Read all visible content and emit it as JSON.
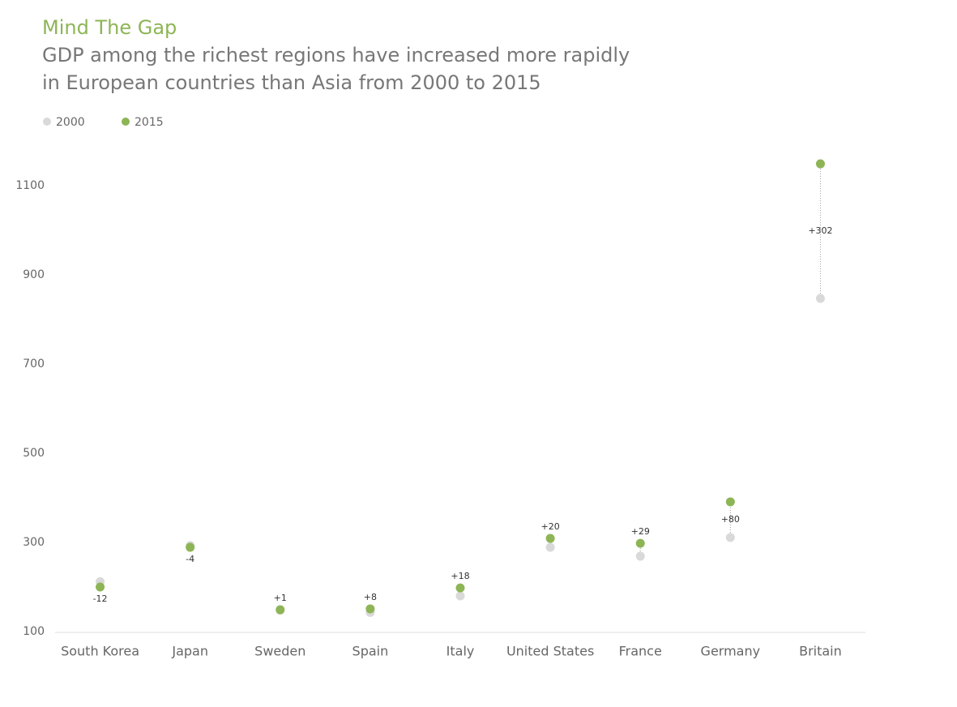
{
  "chart_data": {
    "type": "dumbbell",
    "title": "Mind The Gap",
    "subtitle": [
      "GDP among the richest regions have increased more rapidly",
      "in European countries than Asia from 2000 to 2015"
    ],
    "categories": [
      "South Korea",
      "Japan",
      "Sweden",
      "Spain",
      "Italy",
      "United States",
      "France",
      "Germany",
      "Britain"
    ],
    "series": [
      {
        "name": "2000",
        "color": "#d9d9d9",
        "values": [
          212,
          293,
          148,
          143,
          180,
          289,
          269,
          311,
          847
        ]
      },
      {
        "name": "2015",
        "color": "#8db556",
        "values": [
          200,
          289,
          149,
          151,
          198,
          309,
          298,
          391,
          1149
        ]
      }
    ],
    "change_values": [
      -12,
      -4,
      1,
      8,
      18,
      20,
      29,
      80,
      302
    ],
    "change_labels": [
      "-12",
      "-4",
      "+1",
      "+8",
      "+18",
      "+20",
      "+29",
      "+80",
      "+302"
    ],
    "ylim": [
      100,
      1170
    ],
    "yticks": [
      100,
      300,
      500,
      700,
      900,
      1100
    ],
    "grid": false
  }
}
